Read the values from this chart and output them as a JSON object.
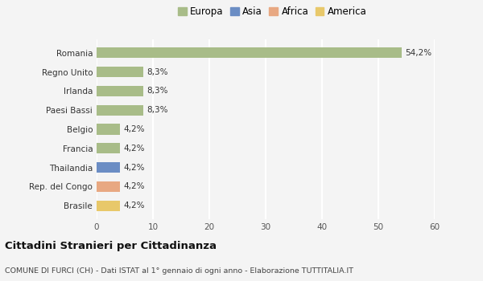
{
  "categories": [
    "Brasile",
    "Rep. del Congo",
    "Thailandia",
    "Francia",
    "Belgio",
    "Paesi Bassi",
    "Irlanda",
    "Regno Unito",
    "Romania"
  ],
  "values": [
    4.2,
    4.2,
    4.2,
    4.2,
    4.2,
    8.3,
    8.3,
    8.3,
    54.2
  ],
  "labels": [
    "4,2%",
    "4,2%",
    "4,2%",
    "4,2%",
    "4,2%",
    "8,3%",
    "8,3%",
    "8,3%",
    "54,2%"
  ],
  "colors": [
    "#e8c86a",
    "#e8a882",
    "#6b8dc4",
    "#a8bc88",
    "#a8bc88",
    "#a8bc88",
    "#a8bc88",
    "#a8bc88",
    "#a8bc88"
  ],
  "legend_labels": [
    "Europa",
    "Asia",
    "Africa",
    "America"
  ],
  "legend_colors": [
    "#a8bc88",
    "#6b8dc4",
    "#e8a882",
    "#e8c86a"
  ],
  "xlim": [
    0,
    60
  ],
  "xticks": [
    0,
    10,
    20,
    30,
    40,
    50,
    60
  ],
  "title": "Cittadini Stranieri per Cittadinanza",
  "subtitle": "COMUNE DI FURCI (CH) - Dati ISTAT al 1° gennaio di ogni anno - Elaborazione TUTTITALIA.IT",
  "bg_color": "#f4f4f4",
  "grid_color": "#ffffff",
  "bar_height": 0.55
}
